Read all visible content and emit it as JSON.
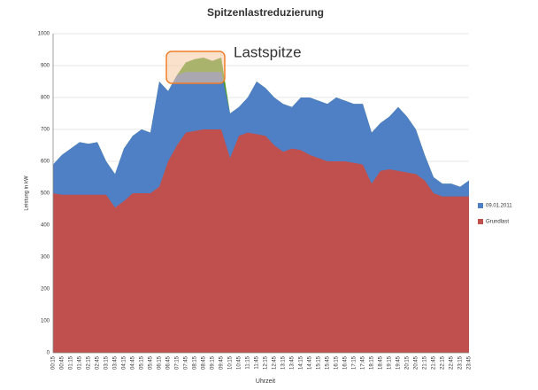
{
  "chart_data": {
    "type": "area",
    "title": "Spitzenlastreduzierung",
    "xlabel": "Uhrzeit",
    "ylabel": "Leistung in kW",
    "categories": [
      "00:15",
      "00:45",
      "01:15",
      "01:45",
      "02:15",
      "02:45",
      "03:15",
      "03:45",
      "04:15",
      "04:45",
      "05:15",
      "05:45",
      "06:15",
      "06:45",
      "07:15",
      "07:45",
      "08:15",
      "08:45",
      "09:15",
      "09:45",
      "10:15",
      "10:45",
      "11:15",
      "11:45",
      "12:15",
      "12:45",
      "13:15",
      "13:45",
      "14:15",
      "14:45",
      "15:15",
      "15:45",
      "16:15",
      "16:45",
      "17:15",
      "17:45",
      "18:15",
      "18:45",
      "19:15",
      "19:45",
      "20:15",
      "20:45",
      "21:15",
      "21:45",
      "22:15",
      "22:45",
      "23:15",
      "23:45"
    ],
    "series": [
      {
        "color": "#4e9a2a",
        "values": [
          590,
          620,
          640,
          660,
          655,
          660,
          600,
          560,
          640,
          680,
          700,
          690,
          850,
          820,
          870,
          910,
          920,
          925,
          915,
          925,
          750,
          770,
          800,
          850,
          830,
          800,
          780,
          770,
          800,
          800,
          790,
          780,
          800,
          790,
          780,
          780,
          690,
          720,
          740,
          770,
          740,
          700,
          620,
          550,
          530,
          530,
          520,
          540
        ]
      },
      {
        "name": "09.01.2011",
        "color": "#4f7fc4",
        "values": [
          590,
          620,
          640,
          660,
          655,
          660,
          600,
          560,
          640,
          680,
          700,
          690,
          850,
          820,
          870,
          880,
          880,
          880,
          880,
          880,
          750,
          770,
          800,
          850,
          830,
          800,
          780,
          770,
          800,
          800,
          790,
          780,
          800,
          790,
          780,
          780,
          690,
          720,
          740,
          770,
          740,
          700,
          620,
          550,
          530,
          530,
          520,
          540
        ]
      },
      {
        "name": "Grundlast",
        "color": "#c0504d",
        "values": [
          500,
          495,
          495,
          495,
          495,
          495,
          495,
          455,
          475,
          500,
          500,
          500,
          520,
          600,
          650,
          690,
          695,
          700,
          700,
          700,
          610,
          680,
          690,
          685,
          680,
          650,
          630,
          640,
          635,
          620,
          610,
          600,
          600,
          600,
          595,
          590,
          530,
          570,
          575,
          570,
          565,
          560,
          540,
          500,
          490,
          490,
          490,
          490
        ]
      }
    ],
    "ylim": [
      0,
      1000
    ],
    "yticks": [
      0,
      100,
      200,
      300,
      400,
      500,
      600,
      700,
      800,
      900,
      1000
    ],
    "grid": true,
    "annotation": "Lastspitze",
    "annotation_color": "#f07f2a",
    "legend": "right"
  }
}
